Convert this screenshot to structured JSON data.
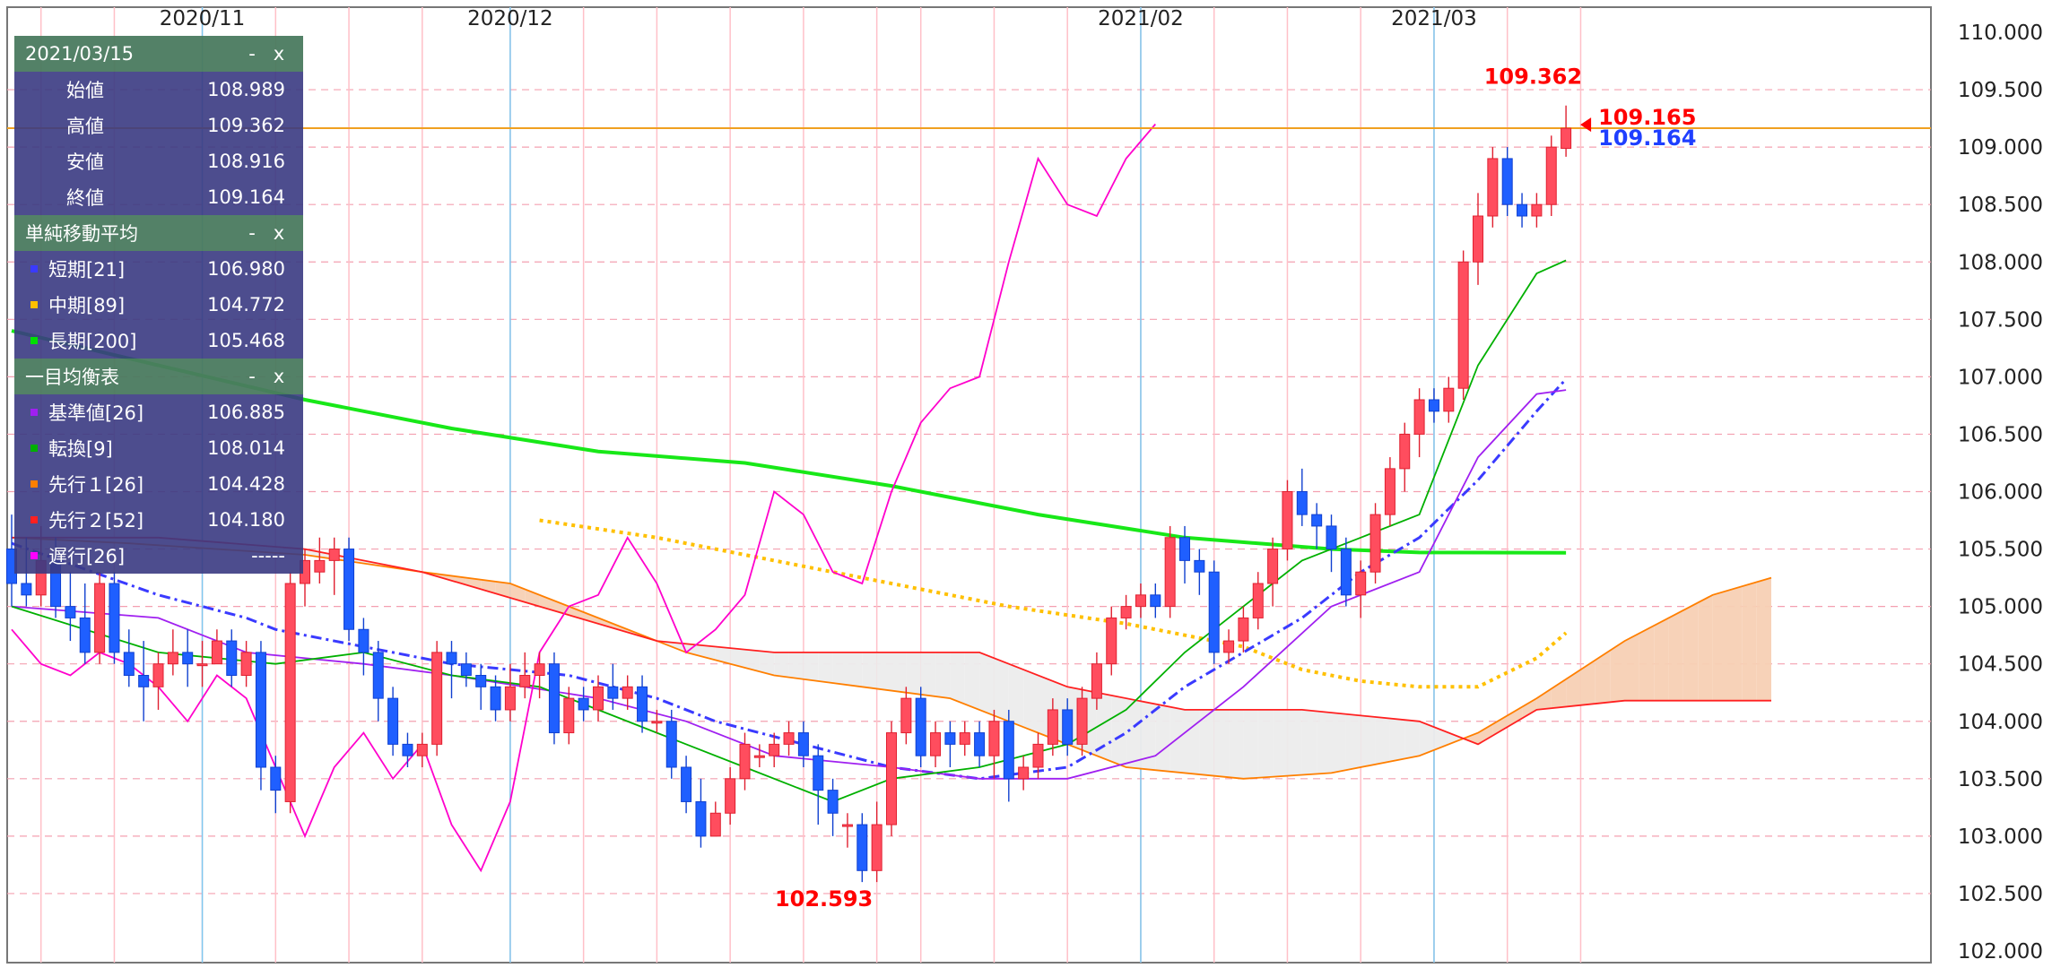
{
  "panel": {
    "date": "2021/03/15",
    "minimize_label": "-",
    "close_label": "x",
    "ohlc": [
      {
        "label": "始値",
        "value": "108.989"
      },
      {
        "label": "高値",
        "value": "109.362"
      },
      {
        "label": "安値",
        "value": "108.916"
      },
      {
        "label": "終値",
        "value": "109.164"
      }
    ],
    "sma_title": "単純移動平均",
    "sma": [
      {
        "label": "短期[21]",
        "value": "106.980",
        "color": "#3a3aff"
      },
      {
        "label": "中期[89]",
        "value": "104.772",
        "color": "#ffc000"
      },
      {
        "label": "長期[200]",
        "value": "105.468",
        "color": "#00e000"
      }
    ],
    "ichimoku_title": "一目均衡表",
    "ichimoku": [
      {
        "label": "基準値[26]",
        "value": "106.885",
        "color": "#a020f0"
      },
      {
        "label": "転換[9]",
        "value": "108.014",
        "color": "#00b000"
      },
      {
        "label": "先行１[26]",
        "value": "104.428",
        "color": "#ff7f00"
      },
      {
        "label": "先行２[52]",
        "value": "104.180",
        "color": "#ff2020"
      },
      {
        "label": "遅行[26]",
        "value": "-----",
        "color": "#ff00ff"
      }
    ]
  },
  "chart_data": {
    "type": "candlestick",
    "ylim": [
      102.0,
      110.0
    ],
    "y_ticks": [
      "110.000",
      "109.500",
      "109.000",
      "108.500",
      "108.000",
      "107.500",
      "107.000",
      "106.500",
      "106.000",
      "105.500",
      "105.000",
      "104.500",
      "104.000",
      "103.500",
      "103.000",
      "102.500",
      "102.000"
    ],
    "month_labels": [
      {
        "label": "2020/11",
        "index": 13
      },
      {
        "label": "2020/12",
        "index": 34
      },
      {
        "label": "2021/02",
        "index": 77
      },
      {
        "label": "2021/03",
        "index": 97
      }
    ],
    "week_lines": [
      2,
      7,
      13,
      18,
      23,
      28,
      34,
      39,
      44,
      49,
      54,
      59,
      62,
      67,
      72,
      77,
      82,
      87,
      92,
      97,
      102,
      107
    ],
    "annotations": {
      "high": {
        "label": "109.362",
        "index": 104,
        "value": 109.362
      },
      "low": {
        "label": "102.593",
        "index": 56,
        "value": 102.593
      },
      "last_red": "109.165",
      "last_blue": "109.164",
      "last_value": 109.164,
      "hline_value": 109.165
    },
    "candles": [
      [
        105.5,
        105.2,
        105.8,
        105.0
      ],
      [
        105.2,
        105.1,
        105.6,
        105.0
      ],
      [
        105.1,
        105.4,
        105.7,
        105.0
      ],
      [
        105.4,
        105.0,
        105.6,
        104.9
      ],
      [
        105.0,
        104.9,
        105.3,
        104.7
      ],
      [
        104.9,
        104.6,
        105.2,
        104.5
      ],
      [
        104.6,
        105.2,
        105.3,
        104.5
      ],
      [
        105.2,
        104.6,
        105.3,
        104.5
      ],
      [
        104.6,
        104.4,
        104.8,
        104.3
      ],
      [
        104.4,
        104.3,
        104.7,
        104.0
      ],
      [
        104.3,
        104.5,
        104.6,
        104.1
      ],
      [
        104.5,
        104.6,
        104.8,
        104.4
      ],
      [
        104.6,
        104.5,
        104.8,
        104.3
      ],
      [
        104.5,
        104.5,
        104.7,
        104.3
      ],
      [
        104.5,
        104.7,
        104.8,
        104.5
      ],
      [
        104.7,
        104.4,
        104.8,
        104.3
      ],
      [
        104.4,
        104.6,
        104.7,
        104.3
      ],
      [
        104.6,
        103.6,
        104.7,
        103.4
      ],
      [
        103.6,
        103.4,
        103.7,
        103.2
      ],
      [
        103.3,
        105.2,
        105.3,
        103.2
      ],
      [
        105.2,
        105.4,
        105.5,
        105.0
      ],
      [
        105.3,
        105.4,
        105.6,
        105.2
      ],
      [
        105.4,
        105.5,
        105.6,
        105.1
      ],
      [
        105.5,
        104.8,
        105.6,
        104.7
      ],
      [
        104.8,
        104.6,
        104.9,
        104.4
      ],
      [
        104.6,
        104.2,
        104.7,
        104.0
      ],
      [
        104.2,
        103.8,
        104.3,
        103.7
      ],
      [
        103.8,
        103.7,
        103.9,
        103.6
      ],
      [
        103.7,
        103.8,
        103.9,
        103.6
      ],
      [
        103.8,
        104.6,
        104.7,
        103.7
      ],
      [
        104.6,
        104.5,
        104.7,
        104.2
      ],
      [
        104.5,
        104.4,
        104.6,
        104.3
      ],
      [
        104.4,
        104.3,
        104.5,
        104.1
      ],
      [
        104.3,
        104.1,
        104.4,
        104.0
      ],
      [
        104.1,
        104.3,
        104.5,
        104.0
      ],
      [
        104.3,
        104.4,
        104.6,
        104.2
      ],
      [
        104.4,
        104.5,
        104.6,
        104.2
      ],
      [
        104.5,
        103.9,
        104.6,
        103.8
      ],
      [
        103.9,
        104.2,
        104.3,
        103.8
      ],
      [
        104.2,
        104.1,
        104.3,
        104.0
      ],
      [
        104.1,
        104.3,
        104.4,
        104.0
      ],
      [
        104.3,
        104.2,
        104.5,
        104.1
      ],
      [
        104.2,
        104.3,
        104.4,
        104.1
      ],
      [
        104.3,
        104.0,
        104.4,
        103.9
      ],
      [
        104.0,
        104.0,
        104.1,
        103.9
      ],
      [
        104.0,
        103.6,
        104.1,
        103.5
      ],
      [
        103.6,
        103.3,
        103.7,
        103.2
      ],
      [
        103.3,
        103.0,
        103.5,
        102.9
      ],
      [
        103.0,
        103.2,
        103.3,
        103.0
      ],
      [
        103.2,
        103.5,
        103.6,
        103.1
      ],
      [
        103.5,
        103.8,
        103.9,
        103.4
      ],
      [
        103.7,
        103.7,
        103.8,
        103.6
      ],
      [
        103.7,
        103.8,
        103.9,
        103.6
      ],
      [
        103.8,
        103.9,
        104.0,
        103.7
      ],
      [
        103.9,
        103.7,
        104.0,
        103.6
      ],
      [
        103.7,
        103.4,
        103.8,
        103.1
      ],
      [
        103.4,
        103.2,
        103.5,
        103.0
      ],
      [
        103.1,
        103.1,
        103.2,
        102.9
      ],
      [
        103.1,
        102.7,
        103.2,
        102.6
      ],
      [
        102.7,
        103.1,
        103.3,
        102.6
      ],
      [
        103.1,
        103.9,
        104.0,
        103.0
      ],
      [
        103.9,
        104.2,
        104.3,
        103.8
      ],
      [
        104.2,
        103.7,
        104.3,
        103.6
      ],
      [
        103.7,
        103.9,
        104.0,
        103.6
      ],
      [
        103.9,
        103.8,
        104.0,
        103.6
      ],
      [
        103.8,
        103.9,
        104.0,
        103.7
      ],
      [
        103.9,
        103.7,
        104.0,
        103.6
      ],
      [
        103.7,
        104.0,
        104.1,
        103.5
      ],
      [
        104.0,
        103.5,
        104.1,
        103.3
      ],
      [
        103.5,
        103.6,
        103.7,
        103.4
      ],
      [
        103.6,
        103.8,
        103.9,
        103.5
      ],
      [
        103.8,
        104.1,
        104.2,
        103.7
      ],
      [
        104.1,
        103.8,
        104.2,
        103.7
      ],
      [
        103.8,
        104.2,
        104.3,
        103.7
      ],
      [
        104.2,
        104.5,
        104.6,
        104.1
      ],
      [
        104.5,
        104.9,
        105.0,
        104.4
      ],
      [
        104.9,
        105.0,
        105.1,
        104.8
      ],
      [
        105.0,
        105.1,
        105.2,
        104.9
      ],
      [
        105.1,
        105.0,
        105.2,
        104.9
      ],
      [
        105.0,
        105.6,
        105.7,
        104.9
      ],
      [
        105.6,
        105.4,
        105.7,
        105.2
      ],
      [
        105.4,
        105.3,
        105.5,
        105.1
      ],
      [
        105.3,
        104.6,
        105.4,
        104.5
      ],
      [
        104.6,
        104.7,
        104.8,
        104.5
      ],
      [
        104.7,
        104.9,
        105.0,
        104.6
      ],
      [
        104.9,
        105.2,
        105.3,
        104.8
      ],
      [
        105.2,
        105.5,
        105.6,
        105.0
      ],
      [
        105.5,
        106.0,
        106.1,
        105.4
      ],
      [
        106.0,
        105.8,
        106.2,
        105.7
      ],
      [
        105.8,
        105.7,
        105.9,
        105.5
      ],
      [
        105.7,
        105.5,
        105.8,
        105.3
      ],
      [
        105.5,
        105.1,
        105.6,
        105.0
      ],
      [
        105.1,
        105.3,
        105.4,
        104.9
      ],
      [
        105.3,
        105.8,
        105.9,
        105.2
      ],
      [
        105.8,
        106.2,
        106.3,
        105.7
      ],
      [
        106.2,
        106.5,
        106.6,
        106.0
      ],
      [
        106.5,
        106.8,
        106.9,
        106.3
      ],
      [
        106.8,
        106.7,
        106.9,
        106.6
      ],
      [
        106.7,
        106.9,
        107.0,
        106.6
      ],
      [
        106.9,
        108.0,
        108.1,
        106.8
      ],
      [
        108.0,
        108.4,
        108.6,
        107.8
      ],
      [
        108.4,
        108.9,
        109.0,
        108.3
      ],
      [
        108.9,
        108.5,
        109.0,
        108.4
      ],
      [
        108.5,
        108.4,
        108.6,
        108.3
      ],
      [
        108.4,
        108.5,
        108.6,
        108.3
      ],
      [
        108.5,
        109.0,
        109.1,
        108.4
      ],
      [
        108.989,
        109.164,
        109.362,
        108.916
      ]
    ],
    "sma_short": [
      [
        0,
        105.55
      ],
      [
        10,
        105.1
      ],
      [
        16,
        104.9
      ],
      [
        18,
        104.8
      ],
      [
        26,
        104.6
      ],
      [
        30,
        104.5
      ],
      [
        38,
        104.4
      ],
      [
        44,
        104.2
      ],
      [
        48,
        104.0
      ],
      [
        54,
        103.8
      ],
      [
        60,
        103.6
      ],
      [
        66,
        103.5
      ],
      [
        72,
        103.6
      ],
      [
        76,
        103.9
      ],
      [
        80,
        104.3
      ],
      [
        84,
        104.6
      ],
      [
        88,
        104.9
      ],
      [
        92,
        105.3
      ],
      [
        96,
        105.6
      ],
      [
        100,
        106.1
      ],
      [
        104,
        106.7
      ],
      [
        106,
        106.98
      ]
    ],
    "sma_mid": [
      [
        36,
        105.75
      ],
      [
        44,
        105.6
      ],
      [
        52,
        105.4
      ],
      [
        60,
        105.2
      ],
      [
        68,
        105.0
      ],
      [
        76,
        104.85
      ],
      [
        84,
        104.65
      ],
      [
        88,
        104.45
      ],
      [
        92,
        104.35
      ],
      [
        96,
        104.3
      ],
      [
        100,
        104.3
      ],
      [
        104,
        104.55
      ],
      [
        106,
        104.77
      ]
    ],
    "sma_long": [
      [
        0,
        107.4
      ],
      [
        10,
        107.1
      ],
      [
        20,
        106.8
      ],
      [
        30,
        106.55
      ],
      [
        40,
        106.35
      ],
      [
        50,
        106.25
      ],
      [
        60,
        106.05
      ],
      [
        70,
        105.8
      ],
      [
        80,
        105.6
      ],
      [
        90,
        105.5
      ],
      [
        96,
        105.47
      ],
      [
        106,
        105.468
      ]
    ],
    "kijun": [
      [
        0,
        105.0
      ],
      [
        10,
        104.9
      ],
      [
        16,
        104.6
      ],
      [
        24,
        104.5
      ],
      [
        30,
        104.4
      ],
      [
        40,
        104.2
      ],
      [
        46,
        104.0
      ],
      [
        52,
        103.7
      ],
      [
        60,
        103.6
      ],
      [
        66,
        103.5
      ],
      [
        72,
        103.5
      ],
      [
        78,
        103.7
      ],
      [
        84,
        104.3
      ],
      [
        90,
        105.0
      ],
      [
        96,
        105.3
      ],
      [
        100,
        106.3
      ],
      [
        104,
        106.85
      ],
      [
        106,
        106.885
      ]
    ],
    "tenkan": [
      [
        0,
        105.0
      ],
      [
        10,
        104.6
      ],
      [
        18,
        104.5
      ],
      [
        24,
        104.6
      ],
      [
        30,
        104.4
      ],
      [
        36,
        104.3
      ],
      [
        44,
        103.9
      ],
      [
        50,
        103.6
      ],
      [
        56,
        103.3
      ],
      [
        60,
        103.5
      ],
      [
        66,
        103.6
      ],
      [
        72,
        103.8
      ],
      [
        76,
        104.1
      ],
      [
        80,
        104.6
      ],
      [
        84,
        105.0
      ],
      [
        88,
        105.4
      ],
      [
        92,
        105.6
      ],
      [
        96,
        105.8
      ],
      [
        100,
        107.1
      ],
      [
        104,
        107.9
      ],
      [
        106,
        108.014
      ]
    ],
    "senkou1": [
      [
        0,
        105.6
      ],
      [
        8,
        105.55
      ],
      [
        14,
        105.5
      ],
      [
        20,
        105.45
      ],
      [
        28,
        105.3
      ],
      [
        34,
        105.2
      ],
      [
        40,
        104.9
      ],
      [
        46,
        104.6
      ],
      [
        52,
        104.4
      ],
      [
        58,
        104.3
      ],
      [
        64,
        104.2
      ],
      [
        70,
        103.9
      ],
      [
        76,
        103.6
      ],
      [
        84,
        103.5
      ],
      [
        90,
        103.55
      ],
      [
        96,
        103.7
      ],
      [
        100,
        103.9
      ],
      [
        104,
        104.2
      ],
      [
        110,
        104.7
      ],
      [
        116,
        105.1
      ],
      [
        120,
        105.25
      ]
    ],
    "senkou2": [
      [
        0,
        105.6
      ],
      [
        10,
        105.6
      ],
      [
        20,
        105.5
      ],
      [
        28,
        105.3
      ],
      [
        36,
        105.0
      ],
      [
        44,
        104.7
      ],
      [
        52,
        104.6
      ],
      [
        60,
        104.6
      ],
      [
        66,
        104.6
      ],
      [
        72,
        104.3
      ],
      [
        80,
        104.1
      ],
      [
        88,
        104.1
      ],
      [
        96,
        104.0
      ],
      [
        100,
        103.8
      ],
      [
        104,
        104.1
      ],
      [
        110,
        104.18
      ],
      [
        120,
        104.18
      ]
    ],
    "chikou": [
      [
        0,
        104.8
      ],
      [
        2,
        104.5
      ],
      [
        4,
        104.4
      ],
      [
        6,
        104.6
      ],
      [
        8,
        104.5
      ],
      [
        10,
        104.3
      ],
      [
        12,
        104.0
      ],
      [
        14,
        104.4
      ],
      [
        16,
        104.2
      ],
      [
        18,
        103.6
      ],
      [
        20,
        103.0
      ],
      [
        22,
        103.6
      ],
      [
        24,
        103.9
      ],
      [
        26,
        103.5
      ],
      [
        28,
        103.8
      ],
      [
        30,
        103.1
      ],
      [
        32,
        102.7
      ],
      [
        34,
        103.3
      ],
      [
        36,
        104.6
      ],
      [
        38,
        105.0
      ],
      [
        40,
        105.1
      ],
      [
        42,
        105.6
      ],
      [
        44,
        105.2
      ],
      [
        46,
        104.6
      ],
      [
        48,
        104.8
      ],
      [
        50,
        105.1
      ],
      [
        52,
        106.0
      ],
      [
        54,
        105.8
      ],
      [
        56,
        105.3
      ],
      [
        58,
        105.2
      ],
      [
        60,
        106.0
      ],
      [
        62,
        106.6
      ],
      [
        64,
        106.9
      ],
      [
        66,
        107.0
      ],
      [
        68,
        108.0
      ],
      [
        70,
        108.9
      ],
      [
        72,
        108.5
      ],
      [
        74,
        108.4
      ],
      [
        76,
        108.9
      ],
      [
        78,
        109.2
      ]
    ]
  }
}
